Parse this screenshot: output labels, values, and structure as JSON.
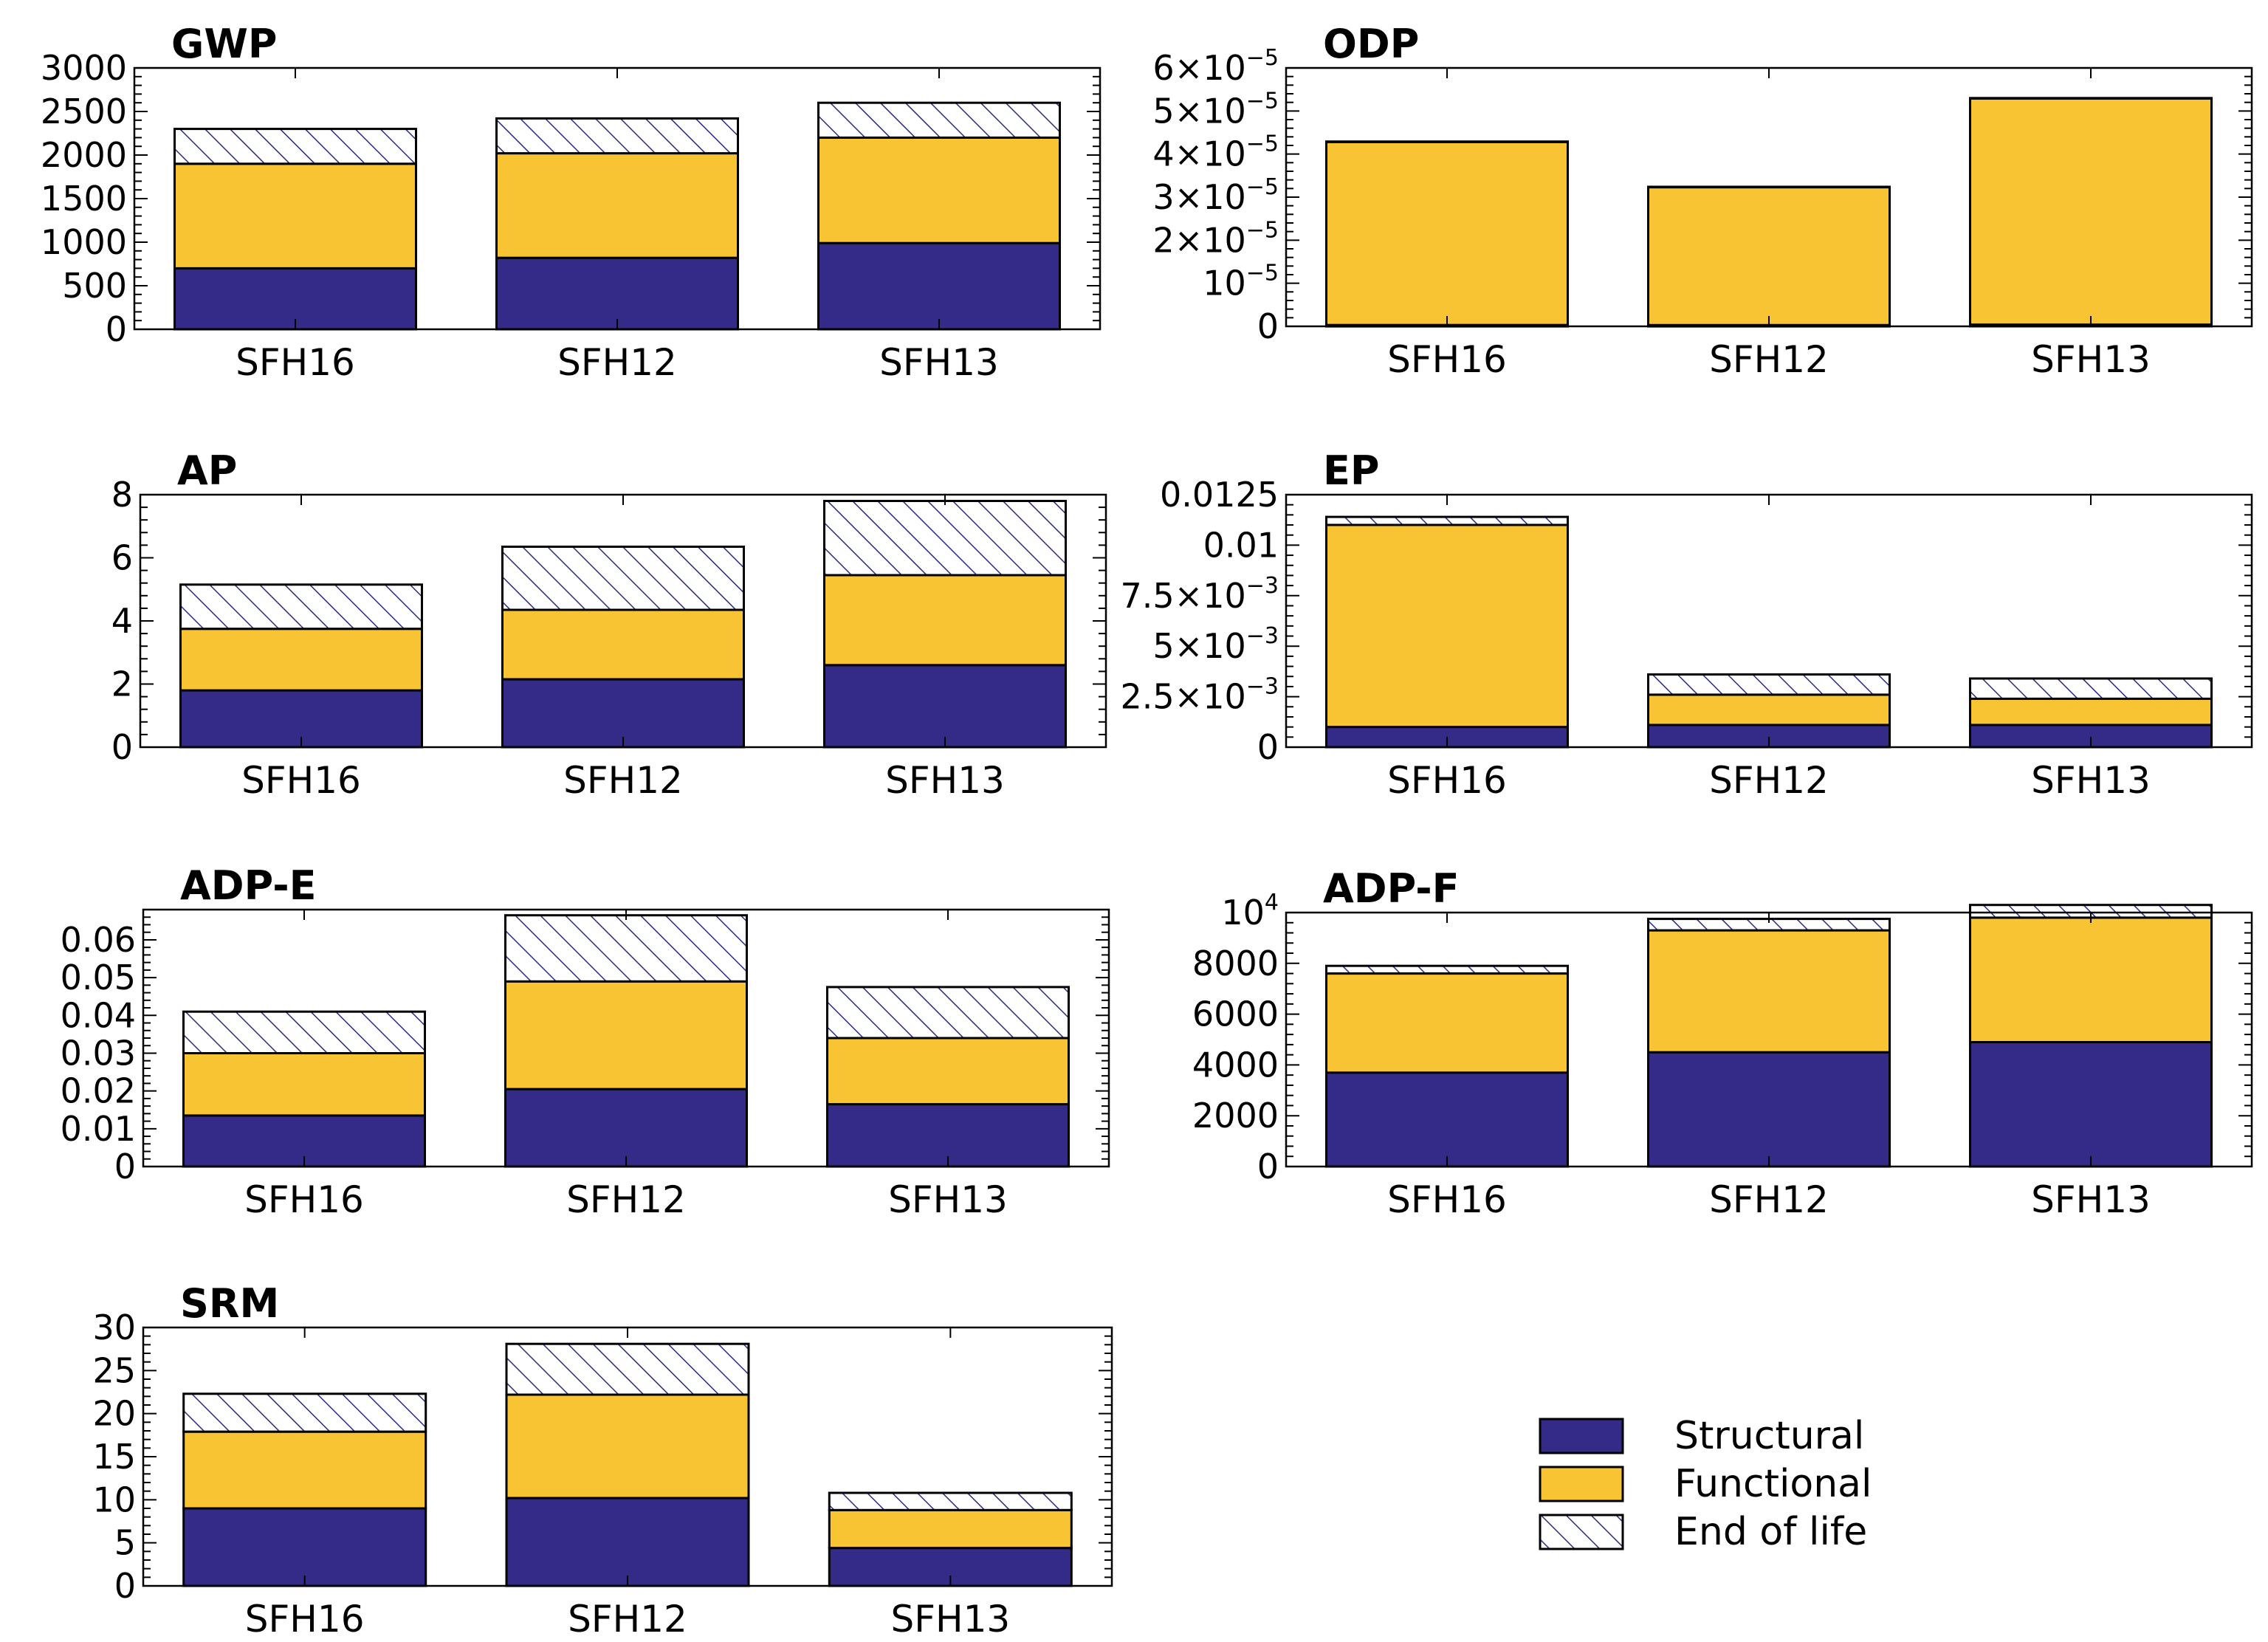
{
  "colors": {
    "structural": "#342a87",
    "functional": "#f8c433",
    "end_of_life_hatch": "#2a2a86",
    "outline": "#000000"
  },
  "legend": {
    "placement": "bottom-right",
    "items": [
      {
        "key": "structural",
        "label": "Structural",
        "pattern": "solid"
      },
      {
        "key": "functional",
        "label": "Functional",
        "pattern": "solid"
      },
      {
        "key": "end_of_life",
        "label": "End of life",
        "pattern": "hatch"
      }
    ]
  },
  "chart_data": [
    {
      "type": "bar",
      "stacked": true,
      "title": "GWP",
      "categories": [
        "SFH16",
        "SFH12",
        "SFH13"
      ],
      "ylim": [
        0,
        3000
      ],
      "yticks": [
        0,
        500,
        1000,
        1500,
        2000,
        2500,
        3000
      ],
      "ytick_labels": [
        "0",
        "500",
        "1000",
        "1500",
        "2000",
        "2500",
        "3000"
      ],
      "series": [
        {
          "name": "Structural",
          "values": [
            700,
            820,
            990
          ]
        },
        {
          "name": "Functional",
          "values": [
            1200,
            1200,
            1210
          ]
        },
        {
          "name": "End of life",
          "values": [
            400,
            400,
            400
          ]
        }
      ]
    },
    {
      "type": "bar",
      "stacked": true,
      "title": "ODP",
      "categories": [
        "SFH16",
        "SFH12",
        "SFH13"
      ],
      "ylim": [
        0,
        6e-05
      ],
      "yticks": [
        0,
        1e-05,
        2e-05,
        3e-05,
        4e-05,
        5e-05,
        6e-05
      ],
      "ytick_labels": [
        {
          "base": "0",
          "exp": ""
        },
        {
          "base": "10",
          "exp": "−5"
        },
        {
          "base": "2×10",
          "exp": "−5"
        },
        {
          "base": "3×10",
          "exp": "−5"
        },
        {
          "base": "4×10",
          "exp": "−5"
        },
        {
          "base": "5×10",
          "exp": "−5"
        },
        {
          "base": "6×10",
          "exp": "−5"
        }
      ],
      "series": [
        {
          "name": "Structural",
          "values": [
            3e-07,
            3e-07,
            4e-07
          ]
        },
        {
          "name": "Functional",
          "values": [
            4.25e-05,
            3.2e-05,
            5.25e-05
          ]
        },
        {
          "name": "End of life",
          "values": [
            1e-07,
            1e-07,
            1e-07
          ]
        }
      ]
    },
    {
      "type": "bar",
      "stacked": true,
      "title": "AP",
      "categories": [
        "SFH16",
        "SFH12",
        "SFH13"
      ],
      "ylim": [
        0,
        8
      ],
      "yticks": [
        0,
        2,
        4,
        6,
        8
      ],
      "ytick_labels": [
        "0",
        "2",
        "4",
        "6",
        "8"
      ],
      "series": [
        {
          "name": "Structural",
          "values": [
            1.8,
            2.15,
            2.6
          ]
        },
        {
          "name": "Functional",
          "values": [
            1.95,
            2.2,
            2.85
          ]
        },
        {
          "name": "End of life",
          "values": [
            1.4,
            2.0,
            2.35
          ]
        }
      ]
    },
    {
      "type": "bar",
      "stacked": true,
      "title": "EP",
      "categories": [
        "SFH16",
        "SFH12",
        "SFH13"
      ],
      "ylim": [
        0,
        0.0125
      ],
      "yticks": [
        0,
        0.0025,
        0.005,
        0.0075,
        0.01,
        0.0125
      ],
      "ytick_labels": [
        {
          "base": "0",
          "exp": ""
        },
        {
          "base": "2.5×10",
          "exp": "−3"
        },
        {
          "base": "5×10",
          "exp": "−3"
        },
        {
          "base": "7.5×10",
          "exp": "−3"
        },
        {
          "base": "0.01",
          "exp": ""
        },
        {
          "base": "0.0125",
          "exp": ""
        }
      ],
      "series": [
        {
          "name": "Structural",
          "values": [
            0.001,
            0.0011,
            0.0011
          ]
        },
        {
          "name": "Functional",
          "values": [
            0.01,
            0.0015,
            0.0013
          ]
        },
        {
          "name": "End of life",
          "values": [
            0.0004,
            0.001,
            0.001
          ]
        }
      ]
    },
    {
      "type": "bar",
      "stacked": true,
      "title": "ADP-E",
      "categories": [
        "SFH16",
        "SFH12",
        "SFH13"
      ],
      "ylim": [
        0,
        0.068
      ],
      "yticks": [
        0,
        0.01,
        0.02,
        0.03,
        0.04,
        0.05,
        0.06
      ],
      "ytick_labels": [
        "0",
        "0.01",
        "0.02",
        "0.03",
        "0.04",
        "0.05",
        "0.06"
      ],
      "series": [
        {
          "name": "Structural",
          "values": [
            0.0135,
            0.0205,
            0.0165
          ]
        },
        {
          "name": "Functional",
          "values": [
            0.0165,
            0.0285,
            0.0175
          ]
        },
        {
          "name": "End of life",
          "values": [
            0.011,
            0.0175,
            0.0135
          ]
        }
      ]
    },
    {
      "type": "bar",
      "stacked": true,
      "title": "ADP-F",
      "categories": [
        "SFH16",
        "SFH12",
        "SFH13"
      ],
      "ylim": [
        0,
        10000
      ],
      "yticks": [
        0,
        2000,
        4000,
        6000,
        8000,
        10000
      ],
      "ytick_labels": [
        {
          "base": "0",
          "exp": ""
        },
        {
          "base": "2000",
          "exp": ""
        },
        {
          "base": "4000",
          "exp": ""
        },
        {
          "base": "6000",
          "exp": ""
        },
        {
          "base": "8000",
          "exp": ""
        },
        {
          "base": "10",
          "exp": "4"
        }
      ],
      "series": [
        {
          "name": "Structural",
          "values": [
            3700,
            4500,
            4900
          ]
        },
        {
          "name": "Functional",
          "values": [
            3900,
            4800,
            4900
          ]
        },
        {
          "name": "End of life",
          "values": [
            300,
            450,
            500
          ]
        }
      ]
    },
    {
      "type": "bar",
      "stacked": true,
      "title": "SRM",
      "categories": [
        "SFH16",
        "SFH12",
        "SFH13"
      ],
      "ylim": [
        0,
        30
      ],
      "yticks": [
        0,
        5,
        10,
        15,
        20,
        25,
        30
      ],
      "ytick_labels": [
        "0",
        "5",
        "10",
        "15",
        "20",
        "25",
        "30"
      ],
      "series": [
        {
          "name": "Structural",
          "values": [
            9.0,
            10.2,
            4.4
          ]
        },
        {
          "name": "Functional",
          "values": [
            8.9,
            12.0,
            4.4
          ]
        },
        {
          "name": "End of life",
          "values": [
            4.4,
            5.9,
            2.0
          ]
        }
      ]
    }
  ]
}
